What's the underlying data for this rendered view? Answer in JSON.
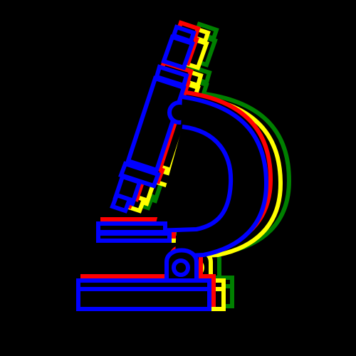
{
  "illustration": {
    "subject": "microscope-icon",
    "background_color": "#000000",
    "layers": [
      {
        "name": "green-outline",
        "color": "#008000"
      },
      {
        "name": "yellow-outline",
        "color": "#FFFF00"
      },
      {
        "name": "red-outline",
        "color": "#FF0000"
      },
      {
        "name": "blue-outline",
        "color": "#0000FF"
      }
    ]
  }
}
